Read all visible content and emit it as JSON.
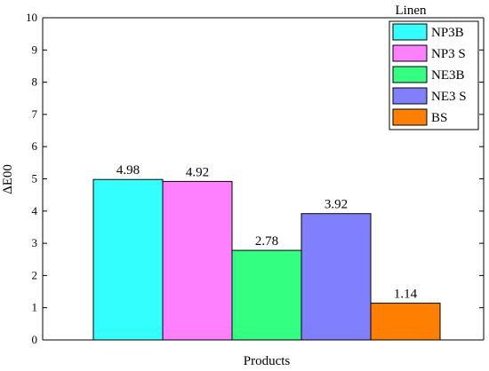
{
  "chart_data": {
    "type": "bar",
    "title": "",
    "xlabel": "Products",
    "ylabel": "ΔE00",
    "ylim": [
      0,
      10
    ],
    "yticks": [
      0,
      1,
      2,
      3,
      4,
      5,
      6,
      7,
      8,
      9,
      10
    ],
    "grid": false,
    "legend_title": "Linen",
    "legend_position": "top-right",
    "series": [
      {
        "name": "NP3B",
        "value": 4.98,
        "label": "4.98",
        "color": "#33FFFF"
      },
      {
        "name": "NP3 S",
        "value": 4.92,
        "label": "4.92",
        "color": "#FF80FF"
      },
      {
        "name": "NE3B",
        "value": 2.78,
        "label": "2.78",
        "color": "#33FF80"
      },
      {
        "name": "NE3 S",
        "value": 3.92,
        "label": "3.92",
        "color": "#8080FF"
      },
      {
        "name": "BS",
        "value": 1.14,
        "label": "1.14",
        "color": "#FF8000"
      }
    ]
  }
}
